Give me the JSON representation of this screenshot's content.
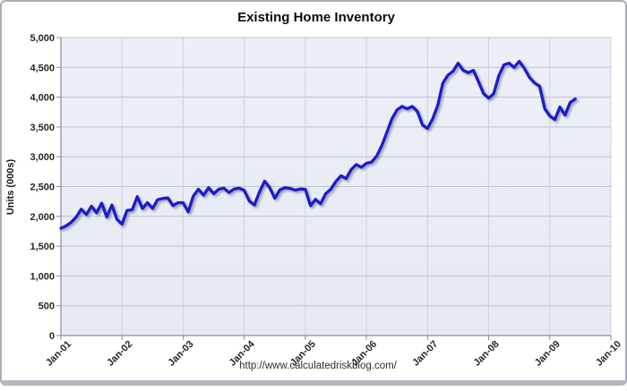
{
  "chart_data": {
    "type": "line",
    "title": "Existing Home Inventory",
    "ylabel": "Units (000s)",
    "footer_url": "http://www.calculatedriskblog.com/",
    "ylim": [
      0,
      5000
    ],
    "y_tick_values": [
      0,
      500,
      1000,
      1500,
      2000,
      2500,
      3000,
      3500,
      4000,
      4500,
      5000
    ],
    "y_tick_labels": [
      "0",
      "500",
      "1,000",
      "1,500",
      "2,000",
      "2,500",
      "3,000",
      "3,500",
      "4,000",
      "4,500",
      "5,000"
    ],
    "x_total_months": 108,
    "x_tick_months": [
      0,
      12,
      24,
      36,
      48,
      60,
      72,
      84,
      96,
      108
    ],
    "x_tick_labels": [
      "Jan-01",
      "Jan-02",
      "Jan-03",
      "Jan-04",
      "Jan-05",
      "Jan-06",
      "Jan-07",
      "Jan-08",
      "Jan-09",
      "Jan-10"
    ],
    "x_start": "Jan-2001",
    "x_step": "month",
    "grid": true,
    "legend": "none",
    "line_color": "#1a1ac8",
    "plot_bg_top": "#eceff6",
    "plot_bg_bottom": "#e5eaf2",
    "series": [
      {
        "name": "Existing Home Inventory",
        "values": [
          1800,
          1840,
          1900,
          1990,
          2120,
          2030,
          2170,
          2060,
          2220,
          1990,
          2190,
          1950,
          1870,
          2100,
          2110,
          2330,
          2130,
          2230,
          2130,
          2280,
          2300,
          2310,
          2180,
          2230,
          2230,
          2075,
          2340,
          2455,
          2355,
          2480,
          2380,
          2455,
          2475,
          2400,
          2460,
          2475,
          2435,
          2255,
          2190,
          2410,
          2590,
          2480,
          2305,
          2445,
          2480,
          2470,
          2440,
          2460,
          2455,
          2180,
          2285,
          2210,
          2380,
          2455,
          2585,
          2680,
          2635,
          2785,
          2870,
          2825,
          2890,
          2910,
          3010,
          3185,
          3410,
          3635,
          3785,
          3845,
          3805,
          3845,
          3760,
          3535,
          3475,
          3635,
          3860,
          4235,
          4370,
          4435,
          4570,
          4450,
          4410,
          4450,
          4260,
          4060,
          3985,
          4060,
          4360,
          4540,
          4570,
          4500,
          4600,
          4485,
          4335,
          4240,
          4185,
          3810,
          3685,
          3625,
          3835,
          3700,
          3910,
          3970
        ]
      }
    ]
  }
}
